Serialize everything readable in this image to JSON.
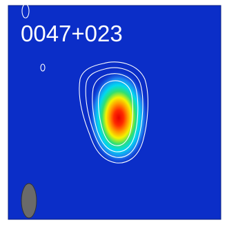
{
  "label": "0047+023"
}
